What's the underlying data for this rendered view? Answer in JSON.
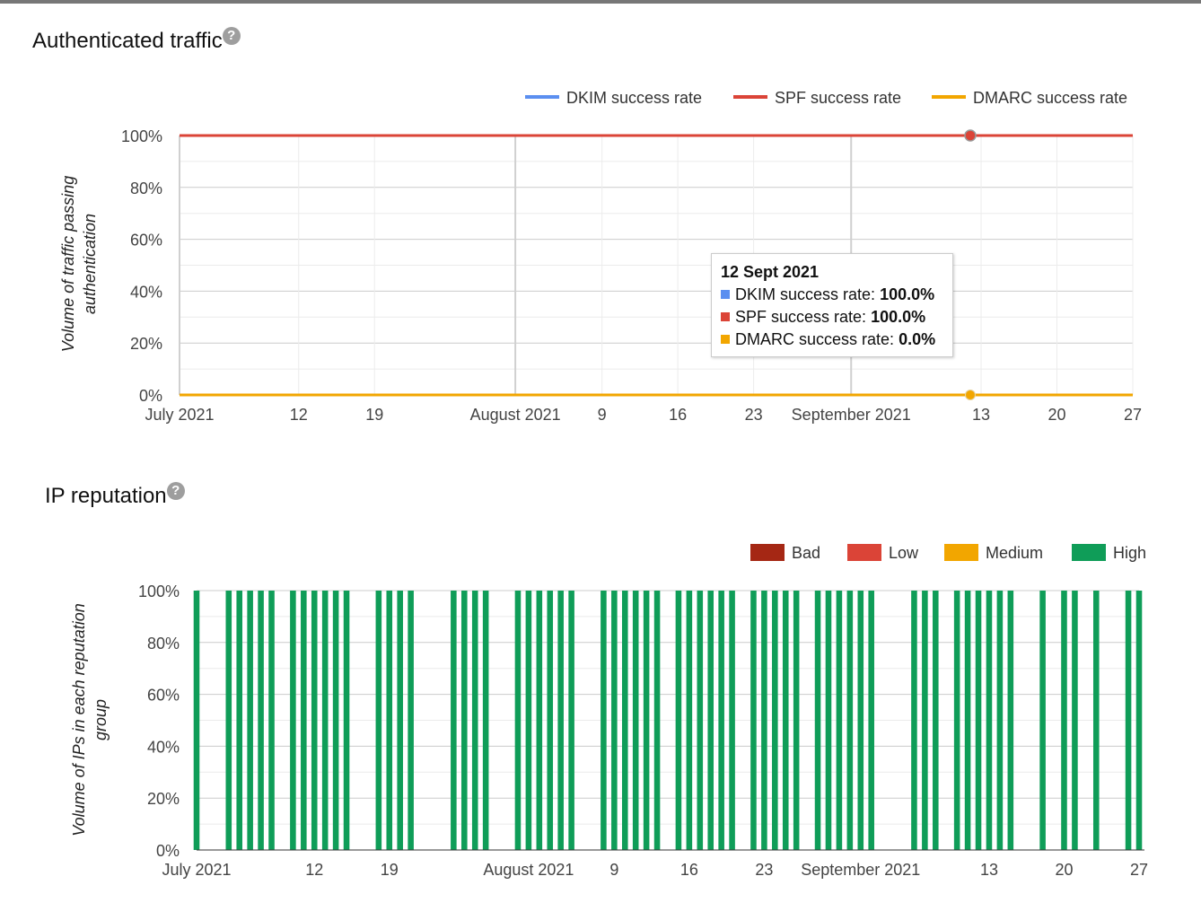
{
  "charts": {
    "auth": {
      "title": "Authenticated traffic",
      "help": "?",
      "ylabel_line1": "Volume of traffic passing",
      "ylabel_line2": "authentication",
      "tooltip": {
        "date": "12 Sept 2021",
        "rows": [
          {
            "label": "DKIM success rate:",
            "value": "100.0%"
          },
          {
            "label": "SPF success rate:",
            "value": "100.0%"
          },
          {
            "label": "DMARC success rate:",
            "value": "0.0%"
          }
        ]
      }
    },
    "ip": {
      "title": "IP reputation",
      "help": "?",
      "ylabel_line1": "Volume of IPs in each reputation",
      "ylabel_line2": "group"
    }
  },
  "chart_data": [
    {
      "type": "line",
      "title": "Authenticated traffic",
      "ylabel": "Volume of traffic passing authentication",
      "x_range": [
        "2021-07-01",
        "2021-09-27"
      ],
      "ylim": [
        0,
        100
      ],
      "y_ticks": [
        "0%",
        "20%",
        "40%",
        "60%",
        "80%",
        "100%"
      ],
      "x_ticks": [
        {
          "date": "2021-07-01",
          "label": "July 2021"
        },
        {
          "date": "2021-07-12",
          "label": "12"
        },
        {
          "date": "2021-07-19",
          "label": "19"
        },
        {
          "date": "2021-08-01",
          "label": "August 2021"
        },
        {
          "date": "2021-08-09",
          "label": "9"
        },
        {
          "date": "2021-08-16",
          "label": "16"
        },
        {
          "date": "2021-08-23",
          "label": "23"
        },
        {
          "date": "2021-09-01",
          "label": "September 2021"
        },
        {
          "date": "2021-09-13",
          "label": "13"
        },
        {
          "date": "2021-09-20",
          "label": "20"
        },
        {
          "date": "2021-09-27",
          "label": "27"
        }
      ],
      "legend_position": "top-right",
      "series": [
        {
          "name": "DKIM success rate",
          "color": "#5b8ff0",
          "values_constant": 100
        },
        {
          "name": "SPF success rate",
          "color": "#db4437",
          "values_constant": 100
        },
        {
          "name": "DMARC success rate",
          "color": "#f2a600",
          "values_constant": 0
        }
      ],
      "highlight_date": "2021-09-12"
    },
    {
      "type": "bar",
      "stacked": true,
      "title": "IP reputation",
      "ylabel": "Volume of IPs in each reputation group",
      "x_range": [
        "2021-07-01",
        "2021-09-27"
      ],
      "ylim": [
        0,
        100
      ],
      "y_ticks": [
        "0%",
        "20%",
        "40%",
        "60%",
        "80%",
        "100%"
      ],
      "x_ticks": [
        {
          "date": "2021-07-01",
          "label": "July 2021"
        },
        {
          "date": "2021-07-12",
          "label": "12"
        },
        {
          "date": "2021-07-19",
          "label": "19"
        },
        {
          "date": "2021-08-01",
          "label": "August 2021"
        },
        {
          "date": "2021-08-09",
          "label": "9"
        },
        {
          "date": "2021-08-16",
          "label": "16"
        },
        {
          "date": "2021-08-23",
          "label": "23"
        },
        {
          "date": "2021-09-01",
          "label": "September 2021"
        },
        {
          "date": "2021-09-13",
          "label": "13"
        },
        {
          "date": "2021-09-20",
          "label": "20"
        },
        {
          "date": "2021-09-27",
          "label": "27"
        }
      ],
      "legend_position": "top-right",
      "legend": [
        {
          "name": "Bad",
          "color": "#a52714"
        },
        {
          "name": "Low",
          "color": "#db4437"
        },
        {
          "name": "Medium",
          "color": "#f2a600"
        },
        {
          "name": "High",
          "color": "#0f9d58"
        }
      ],
      "high_100_percent_dates": [
        "2021-07-01",
        "2021-07-04",
        "2021-07-05",
        "2021-07-06",
        "2021-07-07",
        "2021-07-08",
        "2021-07-10",
        "2021-07-11",
        "2021-07-12",
        "2021-07-13",
        "2021-07-14",
        "2021-07-15",
        "2021-07-18",
        "2021-07-19",
        "2021-07-20",
        "2021-07-21",
        "2021-07-25",
        "2021-07-26",
        "2021-07-27",
        "2021-07-28",
        "2021-07-31",
        "2021-08-01",
        "2021-08-02",
        "2021-08-03",
        "2021-08-04",
        "2021-08-05",
        "2021-08-08",
        "2021-08-09",
        "2021-08-10",
        "2021-08-11",
        "2021-08-12",
        "2021-08-13",
        "2021-08-15",
        "2021-08-16",
        "2021-08-17",
        "2021-08-18",
        "2021-08-19",
        "2021-08-20",
        "2021-08-22",
        "2021-08-23",
        "2021-08-24",
        "2021-08-25",
        "2021-08-26",
        "2021-08-28",
        "2021-08-29",
        "2021-08-30",
        "2021-08-31",
        "2021-09-01",
        "2021-09-02",
        "2021-09-06",
        "2021-09-07",
        "2021-09-08",
        "2021-09-10",
        "2021-09-11",
        "2021-09-12",
        "2021-09-13",
        "2021-09-14",
        "2021-09-15",
        "2021-09-18",
        "2021-09-20",
        "2021-09-21",
        "2021-09-23",
        "2021-09-26",
        "2021-09-27"
      ]
    }
  ]
}
